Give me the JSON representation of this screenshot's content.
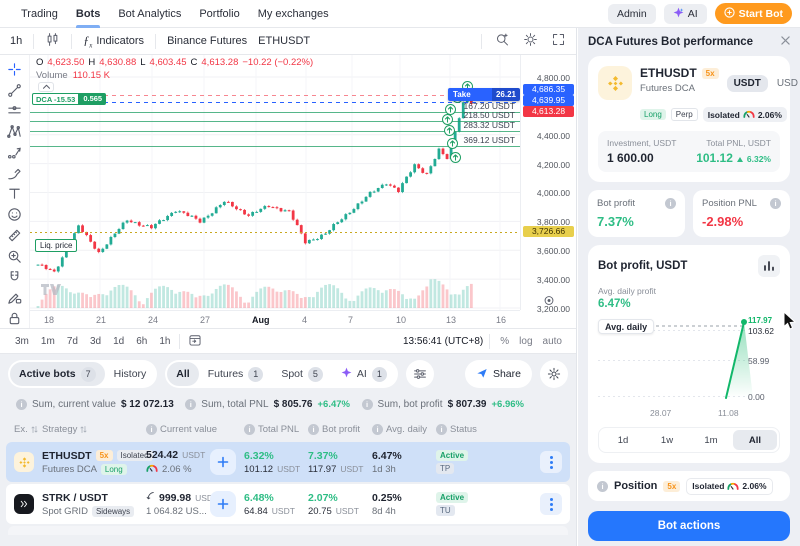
{
  "nav": {
    "items": [
      {
        "label": "Trading"
      },
      {
        "label": "Bots"
      },
      {
        "label": "Bot Analytics"
      },
      {
        "label": "Portfolio"
      },
      {
        "label": "My exchanges"
      }
    ],
    "admin_label": "Admin",
    "ai_label": "AI",
    "start_bot_label": "Start Bot"
  },
  "chart_toolbar": {
    "interval": "1h",
    "indicators_label": "Indicators",
    "exchange_label": "Binance Futures",
    "symbol": "ETHUSDT"
  },
  "chart": {
    "ohlc": {
      "o_key": "O",
      "o": "4,623.50",
      "h_key": "H",
      "h": "4,630.88",
      "l_key": "L",
      "l": "4,603.45",
      "c_key": "C",
      "c": "4,613.28",
      "change": "−10.22 (−0.22%)"
    },
    "volume_label": "Volume",
    "volume_value": "110.15 K",
    "dca_badge": {
      "label": "DCA -15.53",
      "value": "0.565"
    },
    "take_profit": {
      "label": "Take Profit",
      "value": "26.21"
    },
    "liq_label": "Liq. price",
    "order_levels": [
      {
        "label": "167.20 USDT",
        "y": 57
      },
      {
        "label": "218.50 USDT",
        "y": 66
      },
      {
        "label": "283.32 USDT",
        "y": 76
      },
      {
        "label": "369.12 USDT",
        "y": 91
      }
    ],
    "price_ticks": [
      {
        "label": "4,800.00",
        "value": 4800
      },
      {
        "label": "4,400.00",
        "value": 4400
      },
      {
        "label": "4,200.00",
        "value": 4200
      },
      {
        "label": "4,000.00",
        "value": 4000
      },
      {
        "label": "3,800.00",
        "value": 3800
      },
      {
        "label": "3,600.00",
        "value": 3600
      },
      {
        "label": "3,400.00",
        "value": 3400
      },
      {
        "label": "3,200.00",
        "value": 3200
      }
    ],
    "price_badges": [
      {
        "label": "4,686.35",
        "y": 29,
        "bg": "#2962ff",
        "fg": "#ffffff"
      },
      {
        "label": "4,639.95",
        "y": 40,
        "bg": "#2962ff",
        "fg": "#ffffff"
      },
      {
        "label": "4,613.28",
        "y": 51,
        "bg": "#f23645",
        "fg": "#ffffff"
      },
      {
        "label": "3,726.66",
        "y": 171,
        "bg": "#e8cf4c",
        "fg": "#3c3000"
      }
    ],
    "time_ticks": [
      {
        "label": "18",
        "x": 14
      },
      {
        "label": "21",
        "x": 66
      },
      {
        "label": "24",
        "x": 118
      },
      {
        "label": "27",
        "x": 170
      },
      {
        "label": "Aug",
        "x": 222,
        "bold": true
      },
      {
        "label": "4",
        "x": 272
      },
      {
        "label": "7",
        "x": 318
      },
      {
        "label": "10",
        "x": 366
      },
      {
        "label": "13",
        "x": 416
      },
      {
        "label": "16",
        "x": 466
      }
    ],
    "left_tools": [
      "crosshair",
      "trend-line",
      "horizontal-line",
      "xabcd-pattern",
      "forecast",
      "brush",
      "text",
      "emoji",
      "ruler",
      "zoom-in",
      "magnet",
      "draw-lock",
      "lock"
    ]
  },
  "chart_footer": {
    "ranges": [
      "3m",
      "1m",
      "7d",
      "3d",
      "1d",
      "6h",
      "1h"
    ],
    "time": "13:56:41 (UTC+8)",
    "scales": [
      "%",
      "log",
      "auto"
    ]
  },
  "chart_data": {
    "main_chart": {
      "type": "candlestick",
      "symbol": "ETHUSDT",
      "interval": "1h",
      "visible_range": [
        "Jul 18",
        "Aug 16"
      ],
      "price_axis_range": [
        3200,
        4800
      ],
      "last_ohlc": {
        "o": 4623.5,
        "h": 4630.88,
        "l": 4603.45,
        "c": 4613.28
      },
      "volume": "110.15 K",
      "levels": {
        "take_profit": 4686.35,
        "entry": 4639.95,
        "current": 4613.28,
        "liquidation": 3726.66,
        "safety_orders_usdt": [
          167.2,
          218.5,
          283.32,
          369.12
        ]
      },
      "control_points": [
        [
          0,
          3500
        ],
        [
          4,
          3445
        ],
        [
          10,
          3765
        ],
        [
          15,
          3585
        ],
        [
          22,
          3810
        ],
        [
          28,
          3755
        ],
        [
          34,
          3880
        ],
        [
          40,
          3800
        ],
        [
          46,
          3935
        ],
        [
          52,
          3845
        ],
        [
          57,
          3905
        ],
        [
          62,
          3870
        ],
        [
          66,
          3655
        ],
        [
          71,
          3715
        ],
        [
          77,
          3870
        ],
        [
          82,
          3990
        ],
        [
          86,
          4070
        ],
        [
          89,
          4010
        ],
        [
          93,
          4190
        ],
        [
          96,
          4130
        ],
        [
          99,
          4290
        ],
        [
          101,
          4235
        ],
        [
          103,
          4430
        ],
        [
          105,
          4620
        ],
        [
          106,
          4700
        ],
        [
          107,
          4613
        ]
      ]
    },
    "bot_profit_chart": {
      "type": "line",
      "title": "Bot profit, USDT",
      "x_ticks": [
        "28.07",
        "11.08"
      ],
      "y_ticks": [
        103.62,
        58.99,
        0.0
      ],
      "points": [
        {
          "x": "11.08",
          "y": 0
        },
        {
          "x": "13.08",
          "y": 117.97
        }
      ],
      "avg_daily_level": 103.62,
      "point_value": 117.97
    }
  },
  "bots": {
    "tabs": {
      "active_bots": "Active bots",
      "active_count": "7",
      "history": "History"
    },
    "filters": [
      {
        "label": "All",
        "selected": true
      },
      {
        "label": "Futures",
        "count": "1"
      },
      {
        "label": "Spot",
        "count": "5"
      },
      {
        "label": "AI",
        "count": "1"
      }
    ],
    "share_label": "Share",
    "sums": [
      {
        "label": "Sum, current value",
        "value": "$ 12 072.13"
      },
      {
        "label": "Sum, total PNL",
        "value": "$ 805.76",
        "pct": "+6.47%"
      },
      {
        "label": "Sum, bot profit",
        "value": "$ 807.39",
        "pct": "+6.96%"
      }
    ],
    "header": {
      "ex": "Ex.",
      "strategy": "Strategy",
      "current_value": "Current value",
      "total_pnl": "Total PNL",
      "bot_profit": "Bot profit",
      "avg_daily": "Avg. daily",
      "status": "Status"
    },
    "rows": [
      {
        "pair": "ETHUSDT",
        "leverage": "5x",
        "margin": "Isolated",
        "strategy": "Futures DCA",
        "direction": "Long",
        "cv": "524.42",
        "cv_unit": "USDT",
        "cv_sub": "2.06 %",
        "pnl_pct": "6.32%",
        "pnl_val": "101.12",
        "pnl_unit": "USDT",
        "bp_pct": "7.37%",
        "bp_val": "117.97",
        "bp_unit": "USDT",
        "avg_pct": "6.47%",
        "avg_time": "1d 3h",
        "status": "Active",
        "status2": "TP"
      },
      {
        "pair": "STRK / USDT",
        "strategy": "Spot GRID",
        "direction": "Sideways",
        "cv": "999.98",
        "cv_unit": "USDT",
        "cv_sub": "1 064.82 US...",
        "pnl_pct": "6.48%",
        "pnl_val": "64.84",
        "pnl_unit": "USDT",
        "bp_pct": "2.07%",
        "bp_val": "20.75",
        "bp_unit": "USDT",
        "avg_pct": "0.25%",
        "avg_time": "8d 4h",
        "status": "Active",
        "status2": "TU"
      }
    ]
  },
  "panel": {
    "title": "DCA Futures Bot performance",
    "bot": {
      "symbol": "ETHUSDT",
      "leverage": "5x",
      "type": "Futures DCA",
      "direction": "Long",
      "contract": "Perp",
      "margin": "Isolated",
      "risk": "2.06%",
      "currency_options": [
        "USDT",
        "USD"
      ]
    },
    "investment": {
      "label": "Investment, USDT",
      "value": "1 600.00"
    },
    "total_pnl": {
      "label": "Total PNL, USDT",
      "value": "101.12",
      "pct": "6.32%"
    },
    "bot_profit": {
      "label": "Bot profit",
      "value": "7.37%"
    },
    "position_pnl": {
      "label": "Position PNL",
      "value": "-2.98%"
    },
    "chart": {
      "title": "Bot profit, USDT",
      "avg_label": "Avg. daily profit",
      "avg_value": "6.47%",
      "line_label": "Avg. daily",
      "point_value": "117.97",
      "y_ticks": [
        "103.62",
        "58.99",
        "0.00"
      ],
      "x_ticks": [
        "28.07",
        "11.08"
      ],
      "ranges": [
        {
          "label": "1d"
        },
        {
          "label": "1w"
        },
        {
          "label": "1m"
        },
        {
          "label": "All",
          "selected": true
        }
      ]
    },
    "position": {
      "label": "Position",
      "leverage": "5x",
      "margin": "Isolated",
      "risk": "2.06%"
    },
    "action_label": "Bot actions"
  }
}
